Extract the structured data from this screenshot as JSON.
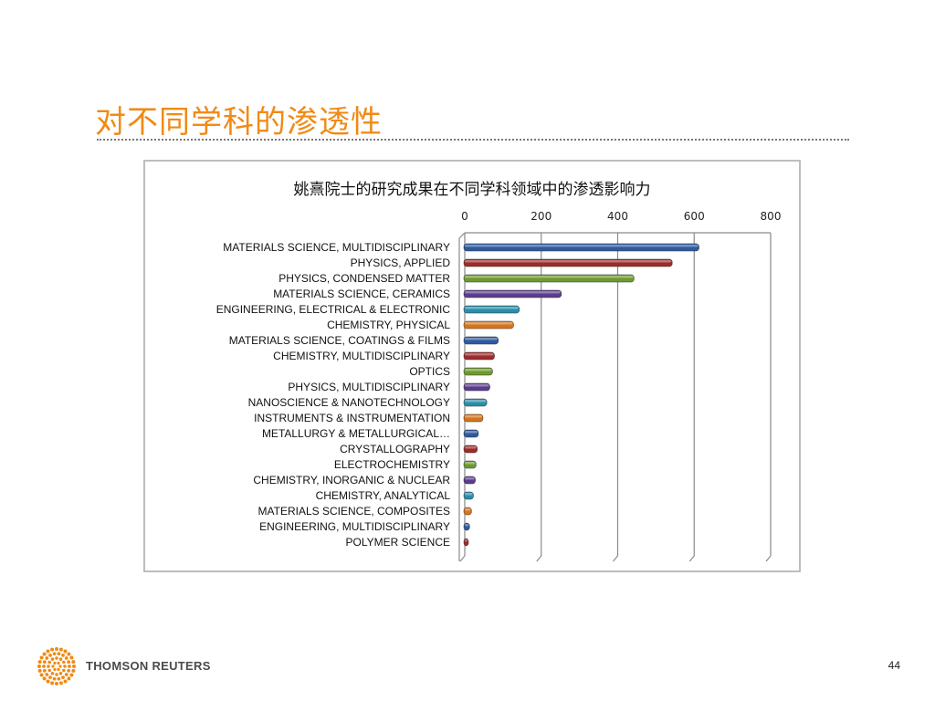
{
  "slide": {
    "title": "对不同学科的渗透性",
    "page_number": "44"
  },
  "footer": {
    "brand": "THOMSON REUTERS"
  },
  "colors": {
    "title": "#f08a16",
    "logo": "#f08a16"
  },
  "chart_data": {
    "type": "bar",
    "orientation": "horizontal",
    "title": "姚熹院士的研究成果在不同学科领域中的渗透影响力",
    "xlim": [
      0,
      800
    ],
    "x_ticks": [
      0,
      200,
      400,
      600,
      800
    ],
    "axis_position": "top",
    "grid": true,
    "categories": [
      "MATERIALS SCIENCE, MULTIDISCIPLINARY",
      "PHYSICS, APPLIED",
      "PHYSICS, CONDENSED MATTER",
      "MATERIALS SCIENCE, CERAMICS",
      "ENGINEERING, ELECTRICAL & ELECTRONIC",
      "CHEMISTRY, PHYSICAL",
      "MATERIALS SCIENCE, COATINGS & FILMS",
      "CHEMISTRY, MULTIDISCIPLINARY",
      "OPTICS",
      "PHYSICS, MULTIDISCIPLINARY",
      "NANOSCIENCE & NANOTECHNOLOGY",
      "INSTRUMENTS & INSTRUMENTATION",
      "METALLURGY & METALLURGICAL…",
      "CRYSTALLOGRAPHY",
      "ELECTROCHEMISTRY",
      "CHEMISTRY, INORGANIC & NUCLEAR",
      "CHEMISTRY, ANALYTICAL",
      "MATERIALS SCIENCE, COMPOSITES",
      "ENGINEERING, MULTIDISCIPLINARY",
      "POLYMER SCIENCE"
    ],
    "values": [
      615,
      545,
      445,
      255,
      145,
      130,
      90,
      80,
      75,
      68,
      60,
      50,
      38,
      35,
      32,
      30,
      25,
      20,
      15,
      12
    ],
    "bar_colors": [
      "#2e5a9e",
      "#9e2a2a",
      "#6e9a2e",
      "#5b3c8c",
      "#2a8ea8",
      "#d6741c"
    ]
  }
}
